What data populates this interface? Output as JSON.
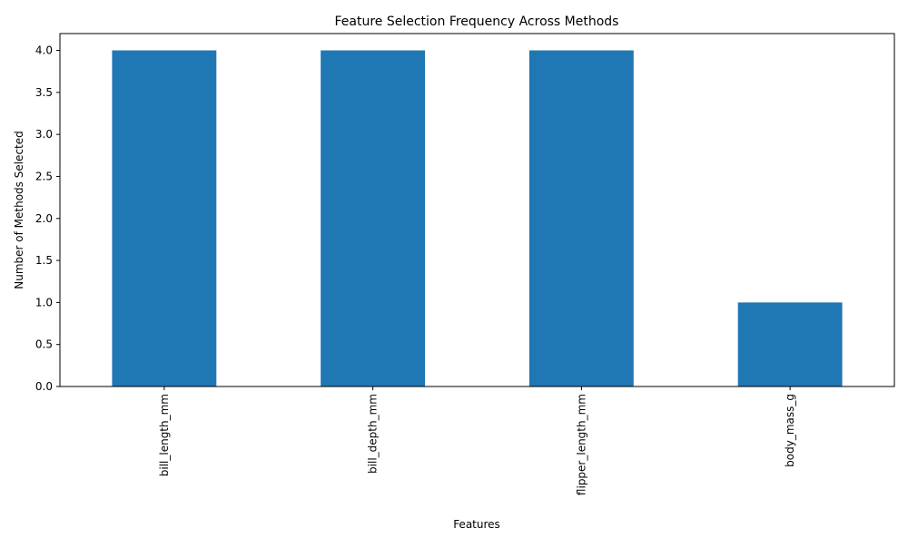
{
  "chart_data": {
    "type": "bar",
    "title": "Feature Selection Frequency Across Methods",
    "xlabel": "Features",
    "ylabel": "Number of Methods Selected",
    "categories": [
      "bill_length_mm",
      "bill_depth_mm",
      "flipper_length_mm",
      "body_mass_g"
    ],
    "values": [
      4,
      4,
      4,
      1
    ],
    "ylim": [
      0,
      4.2
    ],
    "yticks": [
      "0.0",
      "0.5",
      "1.0",
      "1.5",
      "2.0",
      "2.5",
      "3.0",
      "3.5",
      "4.0"
    ],
    "grid": false,
    "legend": "none",
    "bar_color": "#1f77b4"
  }
}
